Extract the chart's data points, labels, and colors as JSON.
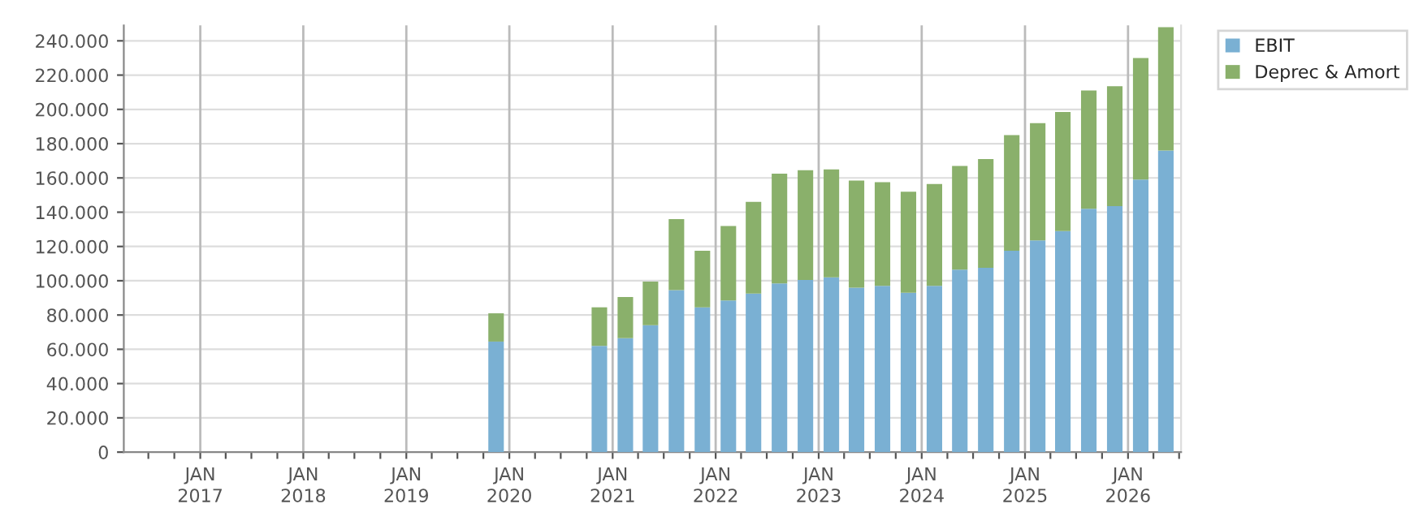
{
  "chart_data": {
    "type": "bar",
    "stacked": true,
    "x": [
      "2019-11-15",
      "2020-11-15",
      "2021-02-15",
      "2021-05-15",
      "2021-08-15",
      "2021-11-15",
      "2022-02-15",
      "2022-05-15",
      "2022-08-15",
      "2022-11-15",
      "2023-02-15",
      "2023-05-15",
      "2023-08-15",
      "2023-11-15",
      "2024-02-15",
      "2024-05-15",
      "2024-08-15",
      "2024-11-15",
      "2025-02-15",
      "2025-05-15",
      "2025-08-15",
      "2025-11-15",
      "2026-02-15",
      "2026-05-15"
    ],
    "series": [
      {
        "name": "EBIT",
        "color": "#7ab0d3",
        "values": [
          64500,
          62000,
          66500,
          74000,
          94500,
          84500,
          88500,
          92500,
          98500,
          100500,
          102000,
          96000,
          97000,
          93000,
          97000,
          106500,
          107500,
          117500,
          123500,
          129000,
          142000,
          143500,
          159000,
          176000
        ]
      },
      {
        "name": "Deprec & Amort",
        "color": "#8ab06b",
        "values": [
          16500,
          22500,
          24000,
          25500,
          41500,
          33000,
          43500,
          53500,
          64000,
          64000,
          63000,
          62500,
          60500,
          59000,
          59500,
          60500,
          63500,
          67500,
          68500,
          69500,
          69000,
          70000,
          71000,
          72000
        ]
      }
    ],
    "ylim": [
      0,
      249000
    ],
    "yticks": [
      0,
      {
        "value": 20000,
        "label": "20.000"
      },
      {
        "value": 40000,
        "label": "40.000"
      },
      {
        "value": 60000,
        "label": "60.000"
      },
      {
        "value": 80000,
        "label": "80.000"
      },
      {
        "value": 100000,
        "label": "100.000"
      },
      {
        "value": 120000,
        "label": "120.000"
      },
      {
        "value": 140000,
        "label": "140.000"
      },
      {
        "value": 160000,
        "label": "160.000"
      },
      {
        "value": 180000,
        "label": "180.000"
      },
      {
        "value": 200000,
        "label": "200.000"
      },
      {
        "value": 220000,
        "label": "220.000"
      },
      {
        "value": 240000,
        "label": "240.000"
      }
    ],
    "xlim": [
      "2016-04-05",
      "2026-07-08"
    ],
    "xticks": [
      {
        "value": "2016-07-01",
        "label": null
      },
      {
        "value": "2016-10-01",
        "label": null
      },
      {
        "value": "2017-01-01",
        "label": "JAN\n2017"
      },
      {
        "value": "2017-04-01",
        "label": null
      },
      {
        "value": "2017-07-01",
        "label": null
      },
      {
        "value": "2017-10-01",
        "label": null
      },
      {
        "value": "2018-01-01",
        "label": "JAN\n2018"
      },
      {
        "value": "2018-04-01",
        "label": null
      },
      {
        "value": "2018-07-01",
        "label": null
      },
      {
        "value": "2018-10-01",
        "label": null
      },
      {
        "value": "2019-01-01",
        "label": "JAN\n2019"
      },
      {
        "value": "2019-04-01",
        "label": null
      },
      {
        "value": "2019-07-01",
        "label": null
      },
      {
        "value": "2019-10-01",
        "label": null
      },
      {
        "value": "2020-01-01",
        "label": "JAN\n2020"
      },
      {
        "value": "2020-04-01",
        "label": null
      },
      {
        "value": "2020-07-01",
        "label": null
      },
      {
        "value": "2020-10-01",
        "label": null
      },
      {
        "value": "2021-01-01",
        "label": "JAN\n2021"
      },
      {
        "value": "2021-04-01",
        "label": null
      },
      {
        "value": "2021-07-01",
        "label": null
      },
      {
        "value": "2021-10-01",
        "label": null
      },
      {
        "value": "2022-01-01",
        "label": "JAN\n2022"
      },
      {
        "value": "2022-04-01",
        "label": null
      },
      {
        "value": "2022-07-01",
        "label": null
      },
      {
        "value": "2022-10-01",
        "label": null
      },
      {
        "value": "2023-01-01",
        "label": "JAN\n2023"
      },
      {
        "value": "2023-04-01",
        "label": null
      },
      {
        "value": "2023-07-01",
        "label": null
      },
      {
        "value": "2023-10-01",
        "label": null
      },
      {
        "value": "2024-01-01",
        "label": "JAN\n2024"
      },
      {
        "value": "2024-04-01",
        "label": null
      },
      {
        "value": "2024-07-01",
        "label": null
      },
      {
        "value": "2024-10-01",
        "label": null
      },
      {
        "value": "2025-01-01",
        "label": "JAN\n2025"
      },
      {
        "value": "2025-04-01",
        "label": null
      },
      {
        "value": "2025-07-01",
        "label": null
      },
      {
        "value": "2025-10-01",
        "label": null
      },
      {
        "value": "2026-01-01",
        "label": "JAN\n2026"
      },
      {
        "value": "2026-04-01",
        "label": null
      },
      {
        "value": "2026-07-01",
        "label": null
      }
    ],
    "grid": true,
    "legend": "top right"
  }
}
